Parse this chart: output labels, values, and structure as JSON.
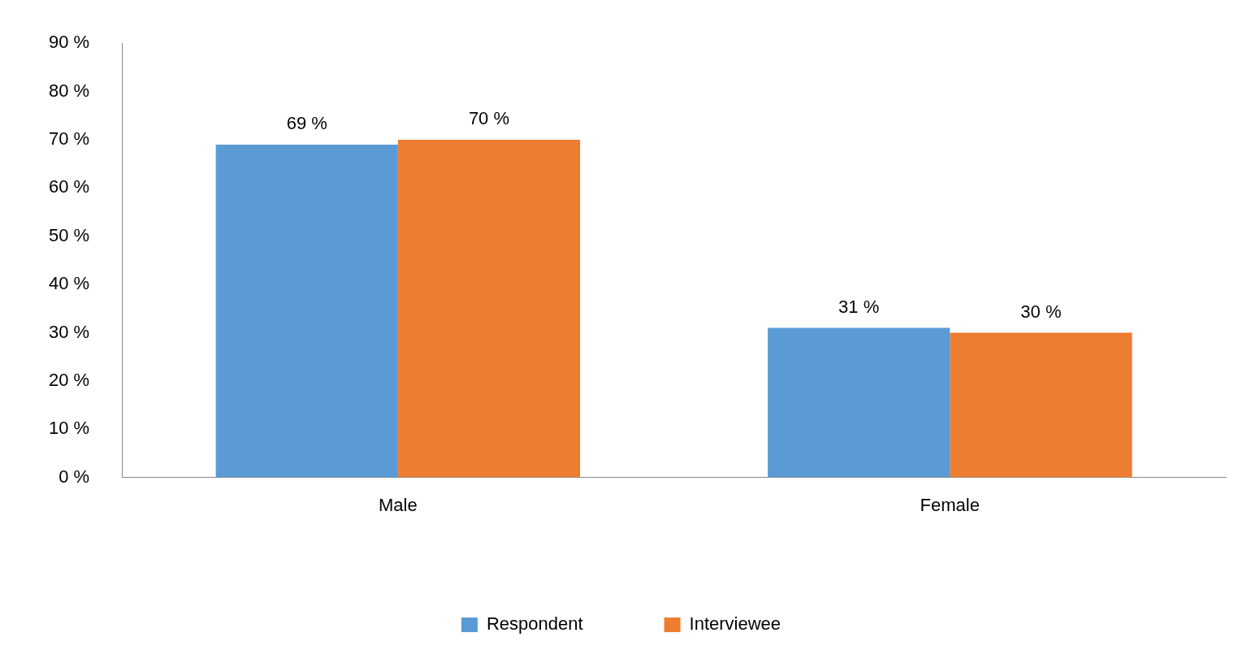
{
  "chart_data": {
    "type": "bar",
    "categories": [
      "Male",
      "Female"
    ],
    "series": [
      {
        "name": "Respondent",
        "color": "#5b9bd5",
        "values": [
          69,
          31
        ],
        "value_labels": [
          "69 %",
          "31 %"
        ]
      },
      {
        "name": "Interviewee",
        "color": "#ed7d31",
        "values": [
          70,
          30
        ],
        "value_labels": [
          "70 %",
          "30 %"
        ]
      }
    ],
    "ylim": [
      0,
      90
    ],
    "yticks": [
      {
        "value": 0,
        "label": "0 %"
      },
      {
        "value": 10,
        "label": "10 %"
      },
      {
        "value": 20,
        "label": "20 %"
      },
      {
        "value": 30,
        "label": "30 %"
      },
      {
        "value": 40,
        "label": "40 %"
      },
      {
        "value": 50,
        "label": "50 %"
      },
      {
        "value": 60,
        "label": "60 %"
      },
      {
        "value": 70,
        "label": "70 %"
      },
      {
        "value": 80,
        "label": "80 %"
      },
      {
        "value": 90,
        "label": "90 %"
      }
    ],
    "grid": false,
    "legend": "bottom"
  }
}
